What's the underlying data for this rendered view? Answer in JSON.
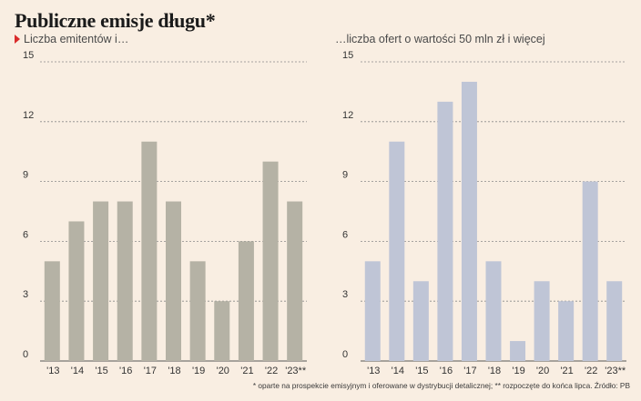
{
  "title": "Publiczne emisje długu*",
  "footnote": "* oparte na prospekcie emisyjnym i oferowane w dystrybucji detalicznej; ** rozpoczęte do końca lipca. Źródło: PB",
  "colors": {
    "left_bar": "#b5b2a5",
    "right_bar": "#bfc5d6",
    "marker": "#d92b2b",
    "background": "#f9eee2"
  },
  "chart_data": [
    {
      "type": "bar",
      "subtitle": "Liczba emitentów i…",
      "categories": [
        "'13",
        "'14",
        "'15",
        "'16",
        "'17",
        "'18",
        "'19",
        "'20",
        "'21",
        "'22",
        "'23**"
      ],
      "values": [
        5,
        7,
        8,
        8,
        11,
        8,
        5,
        3,
        6,
        10,
        8
      ],
      "yticks": [
        0,
        3,
        6,
        9,
        12,
        15
      ],
      "ylim": [
        0,
        15
      ],
      "grid": true
    },
    {
      "type": "bar",
      "subtitle": "…liczba ofert o wartości 50 mln zł i więcej",
      "categories": [
        "'13",
        "'14",
        "'15",
        "'16",
        "'17",
        "'18",
        "'19",
        "'20",
        "'21",
        "'22",
        "'23**"
      ],
      "values": [
        5,
        11,
        4,
        13,
        14,
        5,
        1,
        4,
        3,
        9,
        4
      ],
      "yticks": [
        0,
        3,
        6,
        9,
        12,
        15
      ],
      "ylim": [
        0,
        15
      ],
      "grid": true
    }
  ]
}
